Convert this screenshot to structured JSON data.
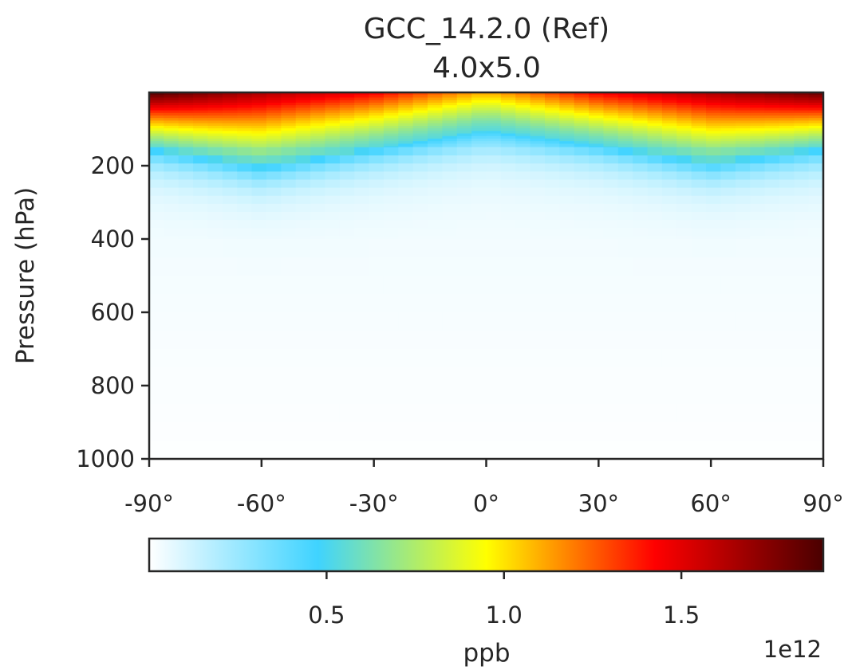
{
  "chart_data": {
    "type": "heatmap",
    "title": "GCC_14.2.0 (Ref)",
    "subtitle": "4.0x5.0",
    "xlabel": "",
    "ylabel": "Pressure (hPa)",
    "x_range": [
      -90,
      90
    ],
    "y_range": [
      1000,
      0
    ],
    "x_ticks": [
      -90,
      -60,
      -30,
      0,
      30,
      60,
      90
    ],
    "x_tick_labels": [
      "-90°",
      "-60°",
      "-30°",
      "0°",
      "30°",
      "60°",
      "90°"
    ],
    "y_ticks": [
      200,
      400,
      600,
      800,
      1000
    ],
    "y_tick_labels": [
      "200",
      "400",
      "600",
      "800",
      "1000"
    ],
    "grid": false,
    "colorbar": {
      "label": "ppb",
      "multiplier": "1e12",
      "range": [
        0,
        1.9
      ],
      "ticks": [
        0.5,
        1.0,
        1.5
      ],
      "tick_labels": [
        "0.5",
        "1.0",
        "1.5"
      ],
      "colormap": [
        "#ffffff",
        "#3fd3ff",
        "#ffff00",
        "#ff0000",
        "#4a0000"
      ]
    },
    "field_description_values": {
      "latitudes": [
        -90,
        -60,
        -30,
        0,
        30,
        60,
        90
      ],
      "top_layer_value_at_latitudes": [
        1.9,
        1.65,
        1.45,
        1.1,
        1.45,
        1.65,
        1.85
      ],
      "tropopause_pressure_at_latitudes_hPa": [
        150,
        200,
        150,
        100,
        140,
        190,
        150
      ]
    }
  }
}
